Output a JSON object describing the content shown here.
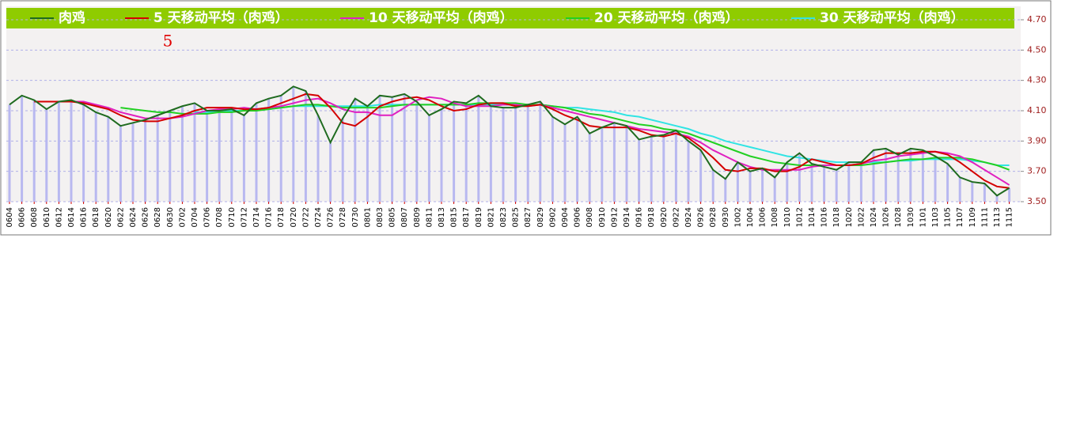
{
  "chart_data": {
    "type": "line",
    "annotation": "5",
    "categories": [
      "0604",
      "0606",
      "0608",
      "0610",
      "0612",
      "0614",
      "0616",
      "0618",
      "0620",
      "0622",
      "0624",
      "0626",
      "0628",
      "0630",
      "0702",
      "0704",
      "0706",
      "0708",
      "0710",
      "0712",
      "0714",
      "0716",
      "0718",
      "0720",
      "0722",
      "0724",
      "0726",
      "0728",
      "0730",
      "0801",
      "0803",
      "0805",
      "0807",
      "0809",
      "0811",
      "0813",
      "0815",
      "0817",
      "0819",
      "0821",
      "0823",
      "0825",
      "0827",
      "0829",
      "0902",
      "0904",
      "0906",
      "0908",
      "0910",
      "0912",
      "0914",
      "0916",
      "0918",
      "0920",
      "0922",
      "0924",
      "0926",
      "0928",
      "0930",
      "1002",
      "1004",
      "1006",
      "1008",
      "1010",
      "1012",
      "1014",
      "1016",
      "1018",
      "1020",
      "1022",
      "1024",
      "1026",
      "1028",
      "1030",
      "1101",
      "1103",
      "1105",
      "1107",
      "1109",
      "1111",
      "1113",
      "1115"
    ],
    "series": [
      {
        "name": "肉鸡",
        "color": "#1f6b1f",
        "values": [
          4.14,
          4.2,
          4.17,
          4.11,
          4.16,
          4.17,
          4.14,
          4.09,
          4.06,
          4.0,
          4.02,
          4.04,
          4.07,
          4.1,
          4.13,
          4.15,
          4.1,
          4.1,
          4.11,
          4.07,
          4.15,
          4.18,
          4.2,
          4.26,
          4.23,
          4.07,
          3.89,
          4.05,
          4.18,
          4.13,
          4.2,
          4.19,
          4.21,
          4.16,
          4.07,
          4.11,
          4.16,
          4.15,
          4.2,
          4.13,
          4.12,
          4.12,
          4.14,
          4.16,
          4.06,
          4.01,
          4.06,
          3.95,
          3.99,
          4.02,
          4.0,
          3.91,
          3.93,
          3.94,
          3.97,
          3.9,
          3.84,
          3.71,
          3.65,
          3.76,
          3.7,
          3.72,
          3.66,
          3.76,
          3.82,
          3.75,
          3.73,
          3.71,
          3.76,
          3.76,
          3.84,
          3.85,
          3.81,
          3.85,
          3.84,
          3.8,
          3.75,
          3.66,
          3.63,
          3.62,
          3.54,
          3.59
        ]
      },
      {
        "name": "5 天移动平均（肉鸡）",
        "color": "#d40000",
        "values": [
          null,
          null,
          4.16,
          4.16,
          4.16,
          4.16,
          4.15,
          4.13,
          4.11,
          4.07,
          4.04,
          4.03,
          4.03,
          4.05,
          4.07,
          4.1,
          4.12,
          4.12,
          4.12,
          4.11,
          4.11,
          4.12,
          4.15,
          4.18,
          4.21,
          4.2,
          4.12,
          4.02,
          4.0,
          4.06,
          4.13,
          4.16,
          4.18,
          4.19,
          4.17,
          4.13,
          4.1,
          4.11,
          4.14,
          4.15,
          4.15,
          4.13,
          4.13,
          4.14,
          4.11,
          4.07,
          4.04,
          4.0,
          3.99,
          3.99,
          3.99,
          3.97,
          3.94,
          3.93,
          3.95,
          3.92,
          3.86,
          3.79,
          3.71,
          3.7,
          3.72,
          3.72,
          3.7,
          3.7,
          3.73,
          3.78,
          3.76,
          3.74,
          3.74,
          3.75,
          3.79,
          3.82,
          3.82,
          3.82,
          3.83,
          3.83,
          3.81,
          3.76,
          3.7,
          3.64,
          3.6,
          3.59
        ]
      },
      {
        "name": "10 天移动平均（肉鸡）",
        "color": "#e020c0",
        "values": [
          null,
          null,
          null,
          null,
          4.16,
          4.16,
          4.16,
          4.14,
          4.12,
          4.09,
          4.07,
          4.05,
          4.05,
          4.05,
          4.06,
          4.08,
          4.1,
          4.11,
          4.11,
          4.12,
          4.11,
          4.12,
          4.13,
          4.15,
          4.17,
          4.18,
          4.15,
          4.11,
          4.09,
          4.09,
          4.07,
          4.07,
          4.12,
          4.17,
          4.19,
          4.18,
          4.15,
          4.13,
          4.13,
          4.13,
          4.14,
          4.14,
          4.13,
          4.14,
          4.12,
          4.1,
          4.08,
          4.06,
          4.04,
          4.02,
          4.0,
          3.98,
          3.97,
          3.96,
          3.95,
          3.93,
          3.89,
          3.84,
          3.8,
          3.76,
          3.73,
          3.71,
          3.71,
          3.71,
          3.71,
          3.73,
          3.74,
          3.74,
          3.74,
          3.75,
          3.77,
          3.78,
          3.8,
          3.81,
          3.82,
          3.83,
          3.82,
          3.8,
          3.76,
          3.71,
          3.66,
          3.61
        ]
      },
      {
        "name": "20 天移动平均（肉鸡）",
        "color": "#22d022",
        "values": [
          null,
          null,
          null,
          null,
          null,
          null,
          null,
          null,
          null,
          4.12,
          4.11,
          4.1,
          4.09,
          4.09,
          4.08,
          4.08,
          4.08,
          4.09,
          4.09,
          4.1,
          4.1,
          4.11,
          4.12,
          4.13,
          4.14,
          4.14,
          4.13,
          4.12,
          4.12,
          4.12,
          4.12,
          4.13,
          4.14,
          4.14,
          4.14,
          4.14,
          4.14,
          4.14,
          4.15,
          4.15,
          4.15,
          4.15,
          4.14,
          4.14,
          4.13,
          4.12,
          4.1,
          4.08,
          4.07,
          4.05,
          4.03,
          4.01,
          4.0,
          3.98,
          3.97,
          3.95,
          3.92,
          3.89,
          3.86,
          3.83,
          3.8,
          3.78,
          3.76,
          3.75,
          3.74,
          3.74,
          3.74,
          3.74,
          3.74,
          3.74,
          3.75,
          3.76,
          3.77,
          3.78,
          3.78,
          3.79,
          3.79,
          3.79,
          3.78,
          3.76,
          3.74,
          3.71
        ]
      },
      {
        "name": "30 天移动平均（肉鸡）",
        "color": "#30e4e4",
        "values": [
          null,
          null,
          null,
          null,
          null,
          null,
          null,
          null,
          null,
          null,
          null,
          null,
          null,
          null,
          null,
          4.09,
          4.09,
          4.09,
          4.1,
          4.1,
          4.11,
          4.11,
          4.12,
          4.13,
          4.13,
          4.13,
          4.13,
          4.13,
          4.13,
          4.13,
          4.14,
          4.14,
          4.14,
          4.14,
          4.14,
          4.14,
          4.14,
          4.14,
          4.14,
          4.14,
          4.14,
          4.14,
          4.14,
          4.14,
          4.13,
          4.12,
          4.12,
          4.11,
          4.1,
          4.09,
          4.07,
          4.06,
          4.04,
          4.02,
          4.0,
          3.98,
          3.95,
          3.93,
          3.9,
          3.88,
          3.86,
          3.84,
          3.82,
          3.8,
          3.79,
          3.78,
          3.77,
          3.76,
          3.76,
          3.76,
          3.76,
          3.76,
          3.77,
          3.77,
          3.78,
          3.78,
          3.78,
          3.78,
          3.77,
          3.76,
          3.74,
          3.74
        ]
      }
    ],
    "bar_color": "#b8b8f0",
    "ylim": [
      3.5,
      4.7
    ],
    "yticks": [
      {
        "value": 3.5,
        "label": "3.50"
      },
      {
        "value": 3.7,
        "label": "3.70"
      },
      {
        "value": 3.9,
        "label": "3.90"
      },
      {
        "value": 4.1,
        "label": "4.10"
      },
      {
        "value": 4.3,
        "label": "4.30"
      },
      {
        "value": 4.5,
        "label": "4.50"
      },
      {
        "value": 4.7,
        "label": "4.70"
      }
    ],
    "grid": true,
    "legend": "top"
  }
}
